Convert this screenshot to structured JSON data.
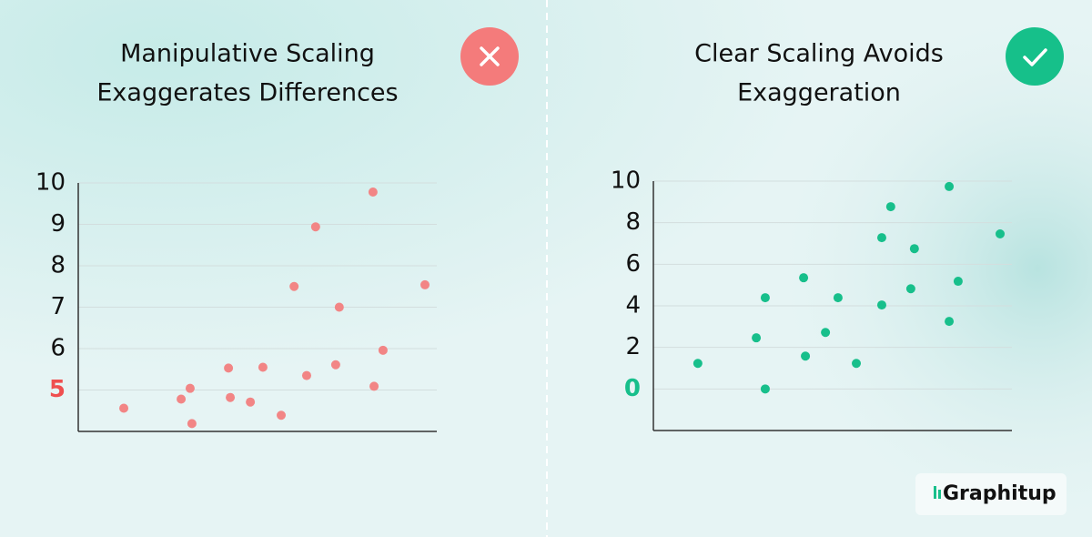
{
  "chart_data": [
    {
      "type": "scatter",
      "title": [
        "Manipulative Scaling",
        "Exaggerates Differences"
      ],
      "color": "#f28585",
      "x": [
        1.27,
        2.87,
        3.12,
        3.17,
        4.19,
        4.24,
        4.8,
        5.15,
        5.66,
        6.02,
        6.37,
        6.62,
        7.18,
        7.28,
        8.22,
        8.25,
        8.5,
        9.67
      ],
      "values": [
        4.56,
        4.78,
        5.04,
        4.19,
        5.53,
        4.82,
        4.71,
        5.55,
        4.39,
        7.5,
        5.35,
        8.94,
        5.61,
        7.0,
        9.78,
        5.09,
        5.96,
        7.54
      ],
      "xlim": [
        0,
        10
      ],
      "ylim": [
        4,
        10
      ],
      "yticks": [
        5,
        6,
        7,
        8,
        9,
        10
      ],
      "grid": true,
      "first_ytick_color": "#ef4f4f"
    },
    {
      "type": "scatter",
      "title": [
        "Clear Scaling Avoids",
        "Exaggeration"
      ],
      "color": "#17bf8b",
      "x": [
        1.24,
        2.87,
        3.12,
        3.12,
        4.19,
        4.24,
        4.8,
        5.15,
        5.66,
        6.37,
        6.37,
        6.62,
        7.18,
        7.28,
        8.25,
        8.25,
        8.5,
        9.67
      ],
      "values": [
        1.23,
        2.46,
        4.39,
        0,
        5.35,
        1.58,
        2.72,
        4.39,
        1.23,
        7.28,
        4.04,
        8.77,
        4.82,
        6.75,
        9.74,
        3.25,
        5.18,
        7.46
      ],
      "xlim": [
        0,
        10
      ],
      "ylim": [
        -2,
        10
      ],
      "yticks": [
        0,
        2,
        4,
        6,
        8,
        10
      ],
      "grid": true,
      "first_ytick_color": "#17bf8b"
    }
  ],
  "brand": "Graphitup"
}
